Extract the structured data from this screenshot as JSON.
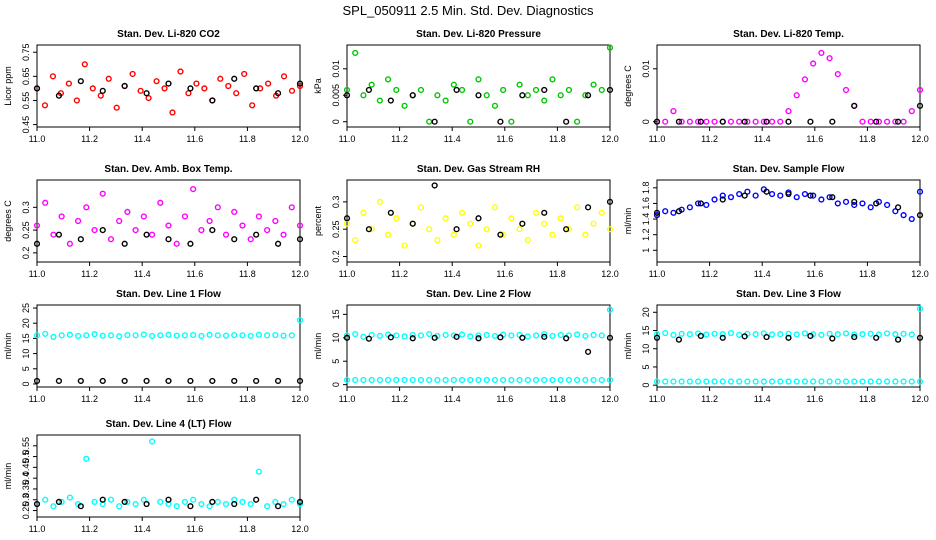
{
  "figure": {
    "title": "SPL_050911  2.5 Min. Std. Dev. Diagnostics"
  },
  "colors": {
    "red": "#ff0000",
    "green": "#00c800",
    "magenta": "#ff00ff",
    "yellow": "#ffff00",
    "blue": "#0000ff",
    "cyan": "#00ffff",
    "overlay": "#000000"
  },
  "chart_data": [
    {
      "type": "scatter",
      "title": "Stan. Dev. Li-820 CO2",
      "ylabel": "Licor ppm",
      "xlim": [
        11.0,
        12.0
      ],
      "ylim": [
        0.44,
        0.78
      ],
      "xticks": [
        11.0,
        11.2,
        11.4,
        11.6,
        11.8,
        12.0
      ],
      "yticks": [
        0.45,
        0.55,
        0.65,
        0.75
      ],
      "series": [
        {
          "color": "red",
          "values": [
            0.6,
            0.53,
            0.65,
            0.58,
            0.62,
            0.55,
            0.7,
            0.6,
            0.57,
            0.64,
            0.52,
            0.61,
            0.66,
            0.59,
            0.56,
            0.63,
            0.6,
            0.5,
            0.67,
            0.58,
            0.62,
            0.6,
            0.55,
            0.64,
            0.61,
            0.58,
            0.66,
            0.53,
            0.6,
            0.62,
            0.57,
            0.65,
            0.59,
            0.61
          ]
        },
        {
          "color": "overlay",
          "values": [
            0.6,
            0.57,
            0.63,
            0.59,
            0.61,
            0.58,
            0.62,
            0.6,
            0.55,
            0.64,
            0.6,
            0.58,
            0.62
          ]
        }
      ]
    },
    {
      "type": "scatter",
      "title": "Stan. Dev. Li-820 Pressure",
      "ylabel": "kPa",
      "xlim": [
        11.0,
        12.0
      ],
      "ylim": [
        -0.001,
        0.0145
      ],
      "xticks": [
        11.0,
        11.2,
        11.4,
        11.6,
        11.8,
        12.0
      ],
      "yticks": [
        0.0,
        0.005,
        0.01
      ],
      "series": [
        {
          "color": "green",
          "values": [
            0.006,
            0.013,
            0.005,
            0.007,
            0.004,
            0.008,
            0.006,
            0.003,
            0.005,
            0.006,
            0.0,
            0.005,
            0.004,
            0.007,
            0.006,
            0.0,
            0.008,
            0.005,
            0.003,
            0.006,
            0.0,
            0.007,
            0.005,
            0.006,
            0.004,
            0.008,
            0.005,
            0.006,
            0.0,
            0.005,
            0.007,
            0.006,
            0.014
          ]
        },
        {
          "color": "overlay",
          "values": [
            0.005,
            0.006,
            0.004,
            0.005,
            0.0,
            0.006,
            0.005,
            0.0,
            0.005,
            0.006,
            0.0,
            0.005,
            0.006
          ]
        }
      ]
    },
    {
      "type": "scatter",
      "title": "Stan. Dev. Li-820 Temp.",
      "ylabel": "degrees C",
      "xlim": [
        11.0,
        12.0
      ],
      "ylim": [
        -0.001,
        0.0145
      ],
      "xticks": [
        11.0,
        11.2,
        11.4,
        11.6,
        11.8,
        12.0
      ],
      "yticks": [
        0.0,
        0.01
      ],
      "series": [
        {
          "color": "magenta",
          "values": [
            0.0,
            0.0,
            0.002,
            0.0,
            0.0,
            0.0,
            0.0,
            0.0,
            0.0,
            0.0,
            0.0,
            0.0,
            0.0,
            0.0,
            0.0,
            0.0,
            0.002,
            0.005,
            0.008,
            0.011,
            0.013,
            0.012,
            0.009,
            0.006,
            0.003,
            0.0,
            0.0,
            0.0,
            0.0,
            0.0,
            0.0,
            0.002,
            0.006
          ]
        },
        {
          "color": "overlay",
          "values": [
            0.0,
            0.0,
            0.0,
            0.0,
            0.0,
            0.0,
            0.0,
            0.0,
            0.0,
            0.003,
            0.0,
            0.0,
            0.003
          ]
        }
      ]
    },
    {
      "type": "scatter",
      "title": "Stan. Dev. Amb. Box Temp.",
      "ylabel": "degrees C",
      "xlim": [
        11.0,
        12.0
      ],
      "ylim": [
        0.18,
        0.36
      ],
      "xticks": [
        11.0,
        11.2,
        11.4,
        11.6,
        11.8,
        12.0
      ],
      "yticks": [
        0.2,
        0.25,
        0.3
      ],
      "series": [
        {
          "color": "magenta",
          "values": [
            0.26,
            0.31,
            0.24,
            0.28,
            0.22,
            0.27,
            0.3,
            0.25,
            0.33,
            0.23,
            0.27,
            0.29,
            0.25,
            0.28,
            0.24,
            0.31,
            0.26,
            0.22,
            0.28,
            0.34,
            0.25,
            0.27,
            0.3,
            0.24,
            0.29,
            0.26,
            0.23,
            0.28,
            0.25,
            0.27,
            0.24,
            0.3,
            0.26
          ]
        },
        {
          "color": "overlay",
          "values": [
            0.22,
            0.24,
            0.23,
            0.25,
            0.22,
            0.24,
            0.23,
            0.22,
            0.25,
            0.23,
            0.24,
            0.22,
            0.23
          ]
        }
      ]
    },
    {
      "type": "scatter",
      "title": "Stan. Dev. Gas Stream RH",
      "ylabel": "percent",
      "xlim": [
        11.0,
        12.0
      ],
      "ylim": [
        0.19,
        0.34
      ],
      "xticks": [
        11.0,
        11.2,
        11.4,
        11.6,
        11.8,
        12.0
      ],
      "yticks": [
        0.2,
        0.25,
        0.3
      ],
      "series": [
        {
          "color": "yellow",
          "values": [
            0.26,
            0.23,
            0.28,
            0.25,
            0.3,
            0.24,
            0.27,
            0.22,
            0.26,
            0.29,
            0.25,
            0.23,
            0.27,
            0.24,
            0.28,
            0.26,
            0.22,
            0.25,
            0.29,
            0.24,
            0.27,
            0.25,
            0.23,
            0.28,
            0.26,
            0.24,
            0.27,
            0.25,
            0.29,
            0.24,
            0.26,
            0.28,
            0.25
          ]
        },
        {
          "color": "overlay",
          "values": [
            0.27,
            0.25,
            0.28,
            0.26,
            0.33,
            0.25,
            0.27,
            0.24,
            0.26,
            0.28,
            0.25,
            0.29,
            0.3
          ]
        }
      ]
    },
    {
      "type": "scatter",
      "title": "Stan. Dev. Sample Flow",
      "ylabel": "ml/min",
      "xlim": [
        11.0,
        12.0
      ],
      "ylim": [
        0.85,
        1.9
      ],
      "xticks": [
        11.0,
        11.2,
        11.4,
        11.6,
        11.8,
        12.0
      ],
      "yticks": [
        1.0,
        1.2,
        1.4,
        1.6,
        1.8
      ],
      "series": [
        {
          "color": "blue",
          "values": [
            1.45,
            1.5,
            1.48,
            1.52,
            1.55,
            1.6,
            1.58,
            1.65,
            1.7,
            1.68,
            1.72,
            1.75,
            1.7,
            1.78,
            1.72,
            1.7,
            1.74,
            1.68,
            1.72,
            1.7,
            1.65,
            1.68,
            1.6,
            1.62,
            1.58,
            1.6,
            1.55,
            1.62,
            1.58,
            1.5,
            1.45,
            1.4,
            1.75
          ]
        },
        {
          "color": "overlay",
          "values": [
            1.48,
            1.5,
            1.6,
            1.65,
            1.7,
            1.75,
            1.72,
            1.7,
            1.68,
            1.62,
            1.6,
            1.55,
            1.45
          ]
        }
      ]
    },
    {
      "type": "scatter",
      "title": "Stan. Dev. Line 1 Flow",
      "ylabel": "ml/min",
      "xlim": [
        11.0,
        12.0
      ],
      "ylim": [
        -1,
        26
      ],
      "xticks": [
        11.0,
        11.2,
        11.4,
        11.6,
        11.8,
        12.0
      ],
      "yticks": [
        0,
        5,
        10,
        15,
        20,
        25
      ],
      "series": [
        {
          "color": "cyan",
          "values": [
            16,
            16.5,
            15.5,
            16,
            16.2,
            15.8,
            16,
            16.4,
            15.9,
            16,
            15.7,
            16.1,
            16,
            16.3,
            15.8,
            16,
            16.2,
            15.9,
            16,
            16.1,
            15.8,
            16.2,
            16,
            15.9,
            16.1,
            16,
            15.8,
            16.2,
            16,
            16.1,
            15.9,
            16,
            21
          ]
        },
        {
          "color": "overlay",
          "values": [
            1,
            1,
            1,
            1,
            1,
            1,
            1,
            1,
            1,
            1,
            1,
            1,
            1
          ]
        }
      ]
    },
    {
      "type": "scatter",
      "title": "Stan. Dev. Line 2 Flow",
      "ylabel": "ml/min",
      "xlim": [
        11.0,
        12.0
      ],
      "ylim": [
        -0.5,
        17
      ],
      "xticks": [
        11.0,
        11.2,
        11.4,
        11.6,
        11.8,
        12.0
      ],
      "yticks": [
        0,
        5,
        10,
        15
      ],
      "series": [
        {
          "color": "cyan",
          "values": [
            10.5,
            10.8,
            10.2,
            10.6,
            10.4,
            10.7,
            10.5,
            10.3,
            10.6,
            10.5,
            10.8,
            10.4,
            10.6,
            10.5,
            10.7,
            10.3,
            10.5,
            10.6,
            10.4,
            10.7,
            10.5,
            10.6,
            10.3,
            10.5,
            10.8,
            10.4,
            10.6,
            10.5,
            10.7,
            10.4,
            10.6,
            10.5,
            16
          ]
        },
        {
          "color": "cyan",
          "values": [
            1,
            1,
            1,
            1,
            1,
            1,
            1,
            1,
            1,
            1,
            1,
            1,
            1,
            1,
            1,
            1,
            1,
            1,
            1,
            1,
            1,
            1,
            1,
            1,
            1,
            1,
            1,
            1,
            1,
            1,
            1,
            1,
            1
          ]
        },
        {
          "color": "overlay",
          "values": [
            10,
            9.8,
            10.1,
            9.9,
            10,
            10.2,
            9.9,
            10.1,
            10,
            10.2,
            9.9,
            7,
            10
          ]
        }
      ]
    },
    {
      "type": "scatter",
      "title": "Stan. Dev. Line 3 Flow",
      "ylabel": "ml/min",
      "xlim": [
        11.0,
        12.0
      ],
      "ylim": [
        -0.5,
        22
      ],
      "xticks": [
        11.0,
        11.2,
        11.4,
        11.6,
        11.8,
        12.0
      ],
      "yticks": [
        0,
        5,
        10,
        15,
        20
      ],
      "series": [
        {
          "color": "cyan",
          "values": [
            14,
            14.3,
            13.8,
            14.1,
            14,
            14.2,
            13.9,
            14.1,
            14,
            14.3,
            13.8,
            14.1,
            14,
            14.2,
            13.9,
            14,
            14.1,
            13.9,
            14.2,
            14,
            13.8,
            14.1,
            14,
            14.2,
            13.9,
            14,
            14.1,
            13.9,
            14.2,
            14,
            14.1,
            13.9,
            21
          ]
        },
        {
          "color": "cyan",
          "values": [
            1,
            1,
            1,
            1,
            1,
            1,
            1,
            1,
            1,
            1,
            1,
            1,
            1,
            1,
            1,
            1,
            1,
            1,
            1,
            1,
            1,
            1,
            1,
            1,
            1,
            1,
            1,
            1,
            1,
            1,
            1,
            1,
            1
          ]
        },
        {
          "color": "overlay",
          "values": [
            13,
            12.5,
            13.5,
            13,
            13.4,
            13.2,
            13,
            13.5,
            12.8,
            13.2,
            13,
            12.5,
            13
          ]
        }
      ]
    },
    {
      "type": "scatter",
      "title": "Stan. Dev. Line 4 (LT) Flow",
      "ylabel": "ml/min",
      "xlim": [
        11.0,
        12.0
      ],
      "ylim": [
        0.22,
        0.6
      ],
      "xticks": [
        11.0,
        11.2,
        11.4,
        11.6,
        11.8,
        12.0
      ],
      "yticks": [
        0.25,
        0.3,
        0.35,
        0.4,
        0.45,
        0.5,
        0.55
      ],
      "series": [
        {
          "color": "cyan",
          "values": [
            0.28,
            0.3,
            0.27,
            0.29,
            0.31,
            0.28,
            0.49,
            0.29,
            0.28,
            0.3,
            0.27,
            0.29,
            0.28,
            0.3,
            0.57,
            0.29,
            0.28,
            0.27,
            0.29,
            0.3,
            0.28,
            0.27,
            0.29,
            0.28,
            0.3,
            0.29,
            0.28,
            0.43,
            0.27,
            0.29,
            0.28,
            0.3,
            0.28
          ]
        },
        {
          "color": "overlay",
          "values": [
            0.28,
            0.29,
            0.27,
            0.3,
            0.29,
            0.28,
            0.3,
            0.27,
            0.29,
            0.28,
            0.3,
            0.27,
            0.29
          ]
        }
      ]
    }
  ]
}
